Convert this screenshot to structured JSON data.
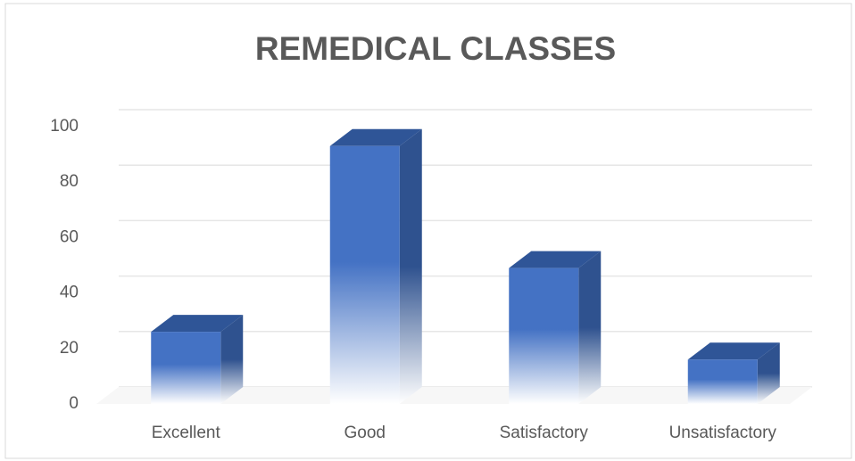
{
  "chart_data": {
    "type": "bar3d",
    "title": "REMEDICAL CLASSES",
    "categories": [
      "Excellent",
      "Good",
      "Satisfactory",
      "Unsatisfactory"
    ],
    "values": [
      26,
      93,
      49,
      16
    ],
    "color": "#4472c4",
    "ylim": [
      0,
      100
    ],
    "yticks": [
      0,
      20,
      40,
      60,
      80,
      100
    ],
    "grid": true
  }
}
